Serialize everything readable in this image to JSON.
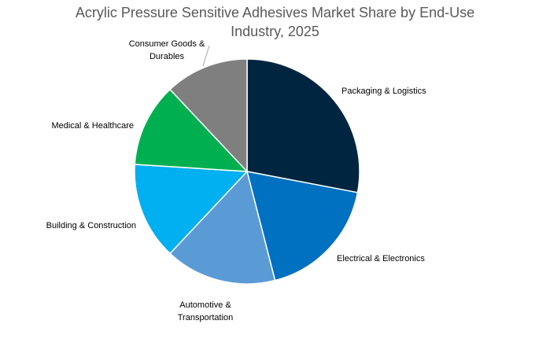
{
  "chart_data": {
    "type": "pie",
    "title": "Acrylic Pressure Sensitive Adhesives Market Share by End-Use\nIndustry, 2025",
    "categories": [
      "Packaging & Logistics",
      "Electrical & Electronics",
      "Automotive & Transportation",
      "Building & Construction",
      "Medical & Healthcare",
      "Consumer Goods & Durables"
    ],
    "values": [
      28,
      18,
      16,
      14,
      12,
      12
    ],
    "colors": [
      "#002541",
      "#0070c0",
      "#5b9bd5",
      "#00b0f0",
      "#00b050",
      "#7f7f7f"
    ],
    "start_angle": "12 o'clock",
    "direction": "clockwise",
    "legend": "none",
    "data_labels": "category names outside slices"
  }
}
